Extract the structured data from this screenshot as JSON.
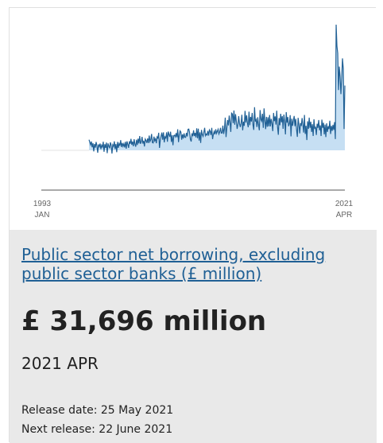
{
  "chart_data": {
    "type": "area",
    "x_start": "1993 JAN",
    "x_end": "2021 APR",
    "xtick_labels": [
      {
        "year": "1993",
        "month": "JAN"
      },
      {
        "year": "2021",
        "month": "APR"
      }
    ],
    "series": [
      {
        "color": "#206095",
        "fill": "#c6dff3",
        "values": [
          5200,
          4000,
          2700,
          4300,
          1500,
          3500,
          -500,
          3100,
          1300,
          4100,
          2300,
          -1200,
          2900,
          1800,
          3300,
          600,
          2500,
          1600,
          4200,
          -700,
          3000,
          1200,
          3800,
          -1400,
          3400,
          2100,
          1000,
          3900,
          2500,
          -1600,
          2700,
          1900,
          4400,
          600,
          3100,
          -900,
          4100,
          1200,
          3300,
          2200,
          5000,
          1600,
          3600,
          2000,
          3200,
          1400,
          4200,
          800,
          4400,
          2900,
          1200,
          4400,
          3200,
          5600,
          2700,
          4300,
          2000,
          5400,
          3000,
          1800,
          5200,
          2600,
          5700,
          3400,
          7000,
          3200,
          4200,
          6600,
          3300,
          4700,
          1900,
          5500,
          4800,
          3600,
          5800,
          3600,
          7200,
          4300,
          5200,
          8000,
          3800,
          3600,
          6700,
          4700,
          5600,
          3500,
          6600,
          6000,
          8600,
          1200,
          5000,
          7000,
          8700,
          5200,
          8800,
          3900,
          6600,
          6000,
          8800,
          4200,
          9200,
          7700,
          6600,
          9100,
          4100,
          7400,
          2500,
          7200,
          7400,
          6600,
          8400,
          6400,
          10300,
          4000,
          7700,
          9500,
          8900,
          5200,
          7800,
          5800,
          8300,
          6400,
          6300,
          8500,
          6800,
          10300,
          10400,
          8600,
          5400,
          4300,
          8300,
          6900,
          9800,
          7000,
          8500,
          6300,
          10800,
          5900,
          10600,
          4800,
          8800,
          3600,
          10000,
          7700,
          6800,
          8800,
          11000,
          7200,
          8000,
          7500,
          9500,
          7200,
          10000,
          9300,
          7500,
          11000,
          5500,
          7800,
          9200,
          7800,
          10300,
          8300,
          9300,
          10300,
          8000,
          9000,
          11000,
          8400,
          8500,
          12100,
          8000,
          10500,
          16000,
          6500,
          11000,
          14800,
          12200,
          17000,
          13800,
          9000,
          18200,
          17800,
          13300,
          19500,
          12500,
          17700,
          14300,
          10500,
          12600,
          16700,
          13100,
          11400,
          13400,
          17400,
          9800,
          14000,
          12000,
          19300,
          13600,
          17100,
          13400,
          11300,
          18900,
          12300,
          16300,
          14100,
          18300,
          12500,
          10000,
          21100,
          14100,
          15000,
          11400,
          16200,
          12500,
          9800,
          19700,
          15200,
          14300,
          17900,
          11000,
          20500,
          14600,
          10400,
          16400,
          11500,
          16200,
          11700,
          17300,
          11700,
          15400,
          13100,
          9400,
          18300,
          14300,
          16600,
          12600,
          19400,
          11600,
          7600,
          15800,
          12300,
          17900,
          13700,
          16700,
          10500,
          17500,
          14300,
          7800,
          18700,
          13500,
          16300,
          11800,
          13000,
          17200,
          6800,
          15500,
          12000,
          14500,
          16800,
          11800,
          15400,
          10300,
          6600,
          15900,
          12600,
          8300,
          13300,
          11900,
          15800,
          12600,
          8700,
          17300,
          8000,
          12000,
          5000,
          14200,
          10500,
          16000,
          11000,
          14000,
          9000,
          12800,
          7000,
          15200,
          10500,
          11500,
          7500,
          13000,
          11000,
          14800,
          9800,
          12200,
          7000,
          15000,
          11000,
          13500,
          7800,
          12600,
          6500,
          13200,
          9000,
          11800,
          10400,
          14500,
          8000,
          12000,
          9500,
          12500,
          10000,
          13800,
          5500,
          61500,
          51000,
          47500,
          29500,
          41000,
          36000,
          27500,
          35300,
          45000,
          40000,
          10400,
          31696
        ]
      }
    ]
  },
  "headline": {
    "title": "Public sector net borrowing, excluding public sector banks (£ million)",
    "value": "£ 31,696 million",
    "period": "2021 APR",
    "release_date": "Release date: 25 May 2021",
    "next_release": "Next release: 22 June 2021"
  }
}
